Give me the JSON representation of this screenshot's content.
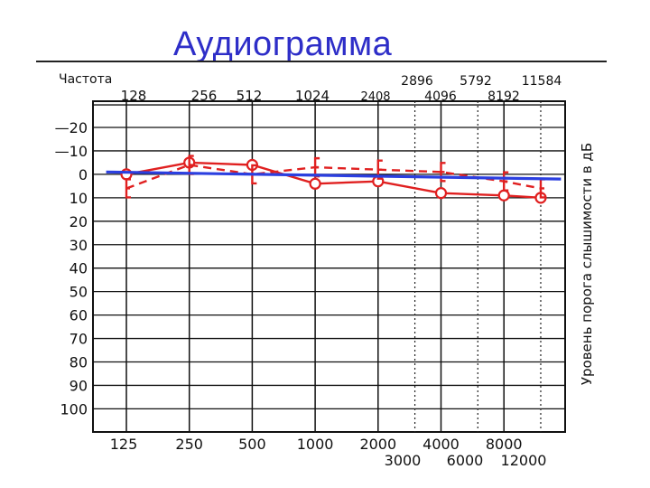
{
  "title": "Аудиограмма",
  "chart_data": {
    "type": "line",
    "title": "Аудиограмма",
    "top_left_label": "Частота",
    "ylabel": "Уровень порога слышимости в дБ",
    "freq_top_row1": [
      "128",
      "256",
      "512",
      "1024",
      "2408"
    ],
    "freq_top_row2_upper": [
      "2896",
      "5792",
      "11584"
    ],
    "freq_top_row2_lower": [
      "4096",
      "8192"
    ],
    "freq_bottom_row1": [
      "125",
      "250",
      "500",
      "1000",
      "2000",
      "4000",
      "8000"
    ],
    "freq_bottom_row2": [
      "3000",
      "6000",
      "12000"
    ],
    "y_tick_labels": [
      "—20",
      "—10",
      "0",
      "10",
      "20",
      "30",
      "40",
      "50",
      "60",
      "70",
      "80",
      "90",
      "100"
    ],
    "y_tick_values": [
      -20,
      -10,
      0,
      10,
      20,
      30,
      40,
      50,
      60,
      70,
      80,
      90,
      100
    ],
    "ylim": [
      -30,
      110
    ],
    "y_direction": "downward",
    "x_ticks_hz": [
      125,
      250,
      500,
      1000,
      2000,
      4000,
      8000
    ],
    "x_ticks_minor_hz": [
      3000,
      6000,
      12000
    ],
    "x_scale": "log",
    "grid": true,
    "series": [
      {
        "kind": "air-conduction",
        "color": "#e02020",
        "line_style": "solid",
        "marker": "circle",
        "x": [
          125,
          250,
          500,
          1000,
          2000,
          4000,
          8000,
          12000
        ],
        "y": [
          0,
          -5,
          -4,
          4,
          3,
          8,
          9,
          10
        ]
      },
      {
        "kind": "bone-conduction",
        "color": "#e02020",
        "line_style": "dashed",
        "marker": "bracket",
        "x": [
          125,
          250,
          500,
          1000,
          2000,
          4000,
          8000,
          12000
        ],
        "y": [
          6,
          -4,
          0,
          -3,
          -2,
          -1,
          3,
          6
        ]
      },
      {
        "kind": "reference",
        "color": "#2b3fe0",
        "line_style": "solid",
        "marker": "none",
        "x": [
          100,
          15000
        ],
        "y": [
          -1,
          2
        ]
      }
    ]
  }
}
